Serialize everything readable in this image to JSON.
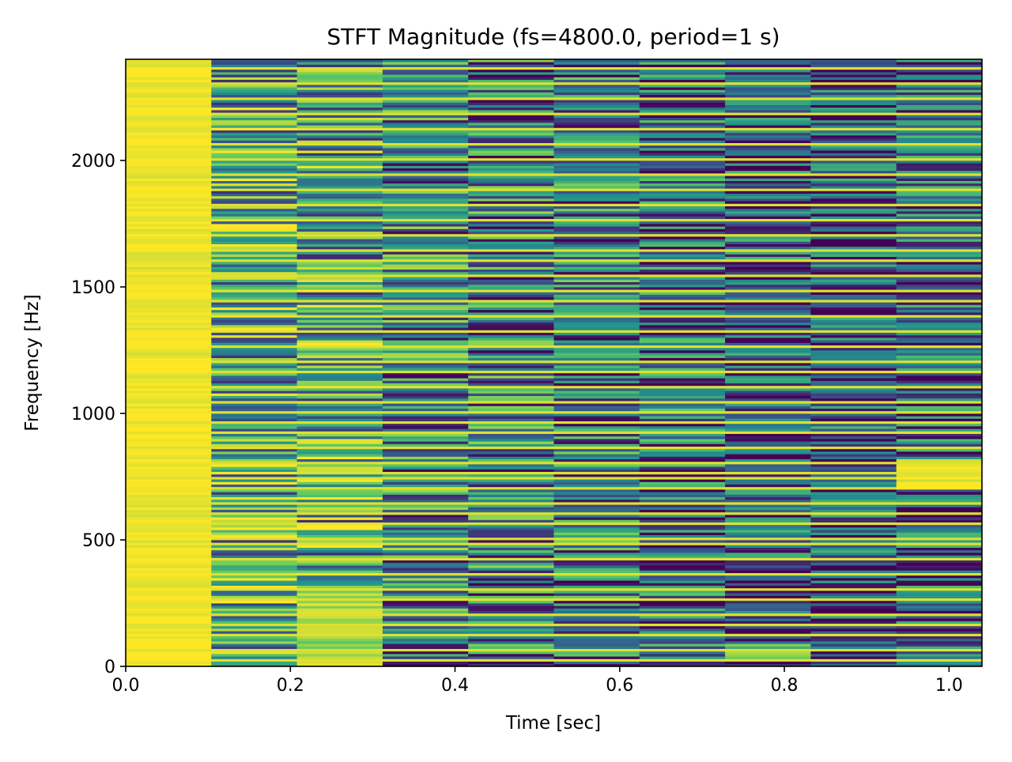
{
  "chart_data": {
    "type": "heatmap",
    "title": "STFT Magnitude (fs=4800.0, period=1 s)",
    "xlabel": "Time [sec]",
    "ylabel": "Frequency [Hz]",
    "xlim": [
      0.0,
      1.04
    ],
    "ylim": [
      0,
      2400
    ],
    "x_ticks": [
      0.0,
      0.2,
      0.4,
      0.6,
      0.8,
      1.0
    ],
    "x_tick_labels": [
      "0.0",
      "0.2",
      "0.4",
      "0.6",
      "0.8",
      "1.0"
    ],
    "y_ticks": [
      0,
      500,
      1000,
      1500,
      2000
    ],
    "y_tick_labels": [
      "0",
      "500",
      "1000",
      "1500",
      "2000"
    ],
    "colormap": "viridis",
    "grid": false,
    "time_bin_edges": [
      0.0,
      0.104,
      0.208,
      0.312,
      0.416,
      0.52,
      0.624,
      0.728,
      0.832,
      0.936,
      1.04
    ],
    "freq_bin_width_hz": 10,
    "columns": [
      {
        "time": 0.052,
        "level": 0.98,
        "variability": 0.05,
        "note": "saturated except 2120–2380 Hz",
        "high_band": [
          2120,
          2380,
          0.65
        ]
      },
      {
        "time": 0.156,
        "level": 0.6,
        "variability": 0.45
      },
      {
        "time": 0.26,
        "level": 0.58,
        "variability": 0.45,
        "high_band": [
          0,
          320,
          0.85
        ]
      },
      {
        "time": 0.364,
        "level": 0.45,
        "variability": 0.45
      },
      {
        "time": 0.468,
        "level": 0.42,
        "variability": 0.45
      },
      {
        "time": 0.572,
        "level": 0.38,
        "variability": 0.42
      },
      {
        "time": 0.676,
        "level": 0.34,
        "variability": 0.42
      },
      {
        "time": 0.78,
        "level": 0.28,
        "variability": 0.4,
        "high_band": [
          20,
          90,
          0.75
        ]
      },
      {
        "time": 0.884,
        "level": 0.26,
        "variability": 0.4
      },
      {
        "time": 0.988,
        "level": 0.3,
        "variability": 0.4,
        "high_band": [
          700,
          820,
          0.95
        ]
      }
    ],
    "strong_frequencies_hz": [
      20,
      60,
      120,
      160,
      200,
      260,
      300,
      360,
      420,
      480,
      500,
      560,
      600,
      640,
      700,
      740,
      760,
      800,
      860,
      920,
      960,
      1000,
      1040,
      1100,
      1160,
      1200,
      1260,
      1320,
      1380,
      1440,
      1480,
      1540,
      1600,
      1640,
      1700,
      1760,
      1820,
      1880,
      1940,
      2000,
      2060,
      2120,
      2180,
      2240,
      2300,
      2360
    ]
  }
}
